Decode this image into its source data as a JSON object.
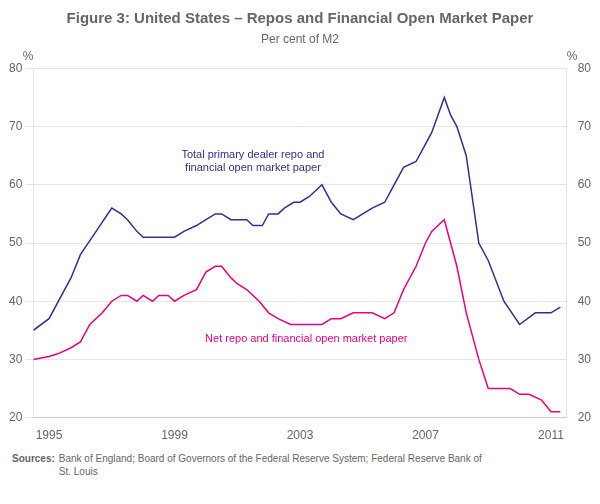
{
  "chart_data": {
    "type": "line",
    "title": "Figure 3: United States – Repos and Financial Open Market Paper",
    "subtitle": "Per cent of M2",
    "sources_label": "Sources:",
    "sources_text": "Bank of England; Board of Governors of the Federal Reserve System; Federal Reserve Bank of\nSt. Louis",
    "ylabel": "%",
    "y2label": "%",
    "xlim": [
      1994.5,
      2011.5
    ],
    "xticks": [
      1995,
      1999,
      2003,
      2007,
      2011
    ],
    "ylim": [
      20,
      80
    ],
    "yticks": [
      20,
      30,
      40,
      50,
      60,
      70,
      80
    ],
    "y2lim": [
      20,
      80
    ],
    "y2ticks": [
      20,
      30,
      40,
      50,
      60,
      70,
      80
    ],
    "grid": "y",
    "series": [
      {
        "color": "#2e3192",
        "x": [
          1994.5,
          1995.0,
          1995.3,
          1995.7,
          1996.0,
          1996.5,
          1997.0,
          1997.3,
          1997.5,
          1997.8,
          1998.0,
          1998.3,
          1998.7,
          1999.0,
          1999.3,
          1999.7,
          2000.0,
          2000.3,
          2000.5,
          2000.8,
          2001.0,
          2001.3,
          2001.5,
          2001.8,
          2002.0,
          2002.3,
          2002.5,
          2002.8,
          2003.0,
          2003.3,
          2003.7,
          2004.0,
          2004.3,
          2004.7,
          2005.0,
          2005.3,
          2005.7,
          2006.0,
          2006.3,
          2006.7,
          2007.0,
          2007.2,
          2007.4,
          2007.6,
          2007.8,
          2008.0,
          2008.3,
          2008.7,
          2009.0,
          2009.5,
          2010.0,
          2010.5,
          2011.0,
          2011.3
        ],
        "values": [
          35,
          37,
          40,
          44,
          48,
          52,
          56,
          55,
          54,
          52,
          51,
          51,
          51,
          51,
          52,
          53,
          54,
          55,
          55,
          54,
          54,
          54,
          53,
          53,
          55,
          55,
          56,
          57,
          57,
          58,
          60,
          57,
          55,
          54,
          55,
          56,
          57,
          60,
          63,
          64,
          67,
          69,
          72,
          75,
          72,
          70,
          65,
          50,
          47,
          40,
          36,
          38,
          38,
          39
        ]
      },
      {
        "color": "#e8007d",
        "x": [
          1994.5,
          1995.0,
          1995.3,
          1995.7,
          1996.0,
          1996.3,
          1996.7,
          1997.0,
          1997.3,
          1997.5,
          1997.8,
          1998.0,
          1998.3,
          1998.5,
          1998.8,
          1999.0,
          1999.3,
          1999.7,
          2000.0,
          2000.3,
          2000.5,
          2000.8,
          2001.0,
          2001.3,
          2001.7,
          2002.0,
          2002.3,
          2002.7,
          2003.0,
          2003.3,
          2003.7,
          2004.0,
          2004.3,
          2004.7,
          2005.0,
          2005.3,
          2005.7,
          2006.0,
          2006.3,
          2006.7,
          2007.0,
          2007.2,
          2007.4,
          2007.6,
          2008.0,
          2008.3,
          2008.7,
          2009.0,
          2009.3,
          2009.7,
          2010.0,
          2010.3,
          2010.7,
          2011.0,
          2011.3
        ],
        "values": [
          30,
          30.5,
          31,
          32,
          33,
          36,
          38,
          40,
          41,
          41,
          40,
          41,
          40,
          41,
          41,
          40,
          41,
          42,
          45,
          46,
          46,
          44,
          43,
          42,
          40,
          38,
          37,
          36,
          36,
          36,
          36,
          37,
          37,
          38,
          38,
          38,
          37,
          38,
          42,
          46,
          50,
          52,
          53,
          54,
          46,
          38,
          30,
          25,
          25,
          25,
          24,
          24,
          23,
          21,
          21
        ]
      }
    ],
    "annotations": [
      {
        "text": "Total primary dealer repo and\nfinancial open market paper",
        "x": 2001.5,
        "y": 64,
        "color": "#2e3192"
      },
      {
        "text": "Net repo and financial open market paper",
        "x": 2003.2,
        "y": 33.5,
        "color": "#e8007d"
      }
    ]
  }
}
